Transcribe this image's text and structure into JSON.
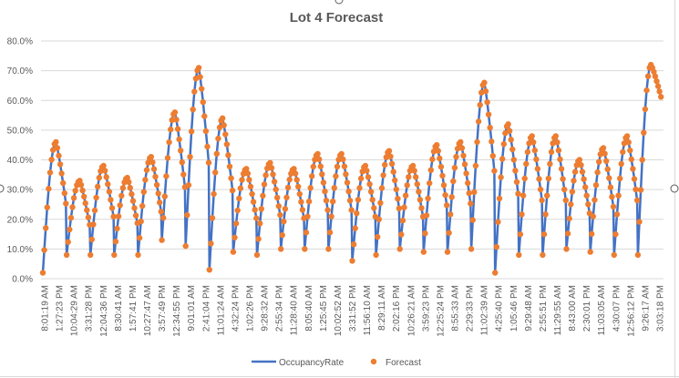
{
  "chart_data": {
    "type": "line",
    "title": "Lot 4 Forecast",
    "xlabel": "",
    "ylabel": "",
    "ylim": [
      0,
      0.8
    ],
    "y_ticks": [
      "0.0%",
      "10.0%",
      "20.0%",
      "30.0%",
      "40.0%",
      "50.0%",
      "60.0%",
      "70.0%",
      "80.0%"
    ],
    "grid": true,
    "legend_position": "bottom",
    "x_tick_labels": [
      "8:01:19 AM",
      "1:27:23 PM",
      "10:04:29 AM",
      "3:31:28 PM",
      "12:04:36 PM",
      "8:30:41 AM",
      "1:57:41 PM",
      "10:27:47 AM",
      "3:57:49 PM",
      "12:34:55 PM",
      "9:01:01 AM",
      "2:41:04 PM",
      "11:01:24 AM",
      "4:32:24 PM",
      "1:02:26 PM",
      "9:28:32 AM",
      "2:55:34 PM",
      "11:28:40 AM",
      "8:05:40 AM",
      "1:25:45 PM",
      "10:02:52 AM",
      "3:31:52 PM",
      "11:56:10 AM",
      "8:29:11 AM",
      "2:02:16 PM",
      "10:26:21 AM",
      "3:59:23 PM",
      "12:25:24 PM",
      "8:55:33 AM",
      "2:29:33 PM",
      "11:02:39 AM",
      "4:25:40 PM",
      "1:05:46 PM",
      "9:29:48 AM",
      "2:55:51 PM",
      "11:29:55 AM",
      "8:43:00 AM",
      "2:30:01 PM",
      "11:03:05 AM",
      "4:30:07 PM",
      "12:56:12 PM",
      "9:26:17 AM",
      "3:03:18 PM"
    ],
    "cycle_peaks": [
      0.46,
      0.33,
      0.38,
      0.34,
      0.41,
      0.56,
      0.71,
      0.54,
      0.37,
      0.39,
      0.37,
      0.42,
      0.42,
      0.38,
      0.43,
      0.38,
      0.45,
      0.46,
      0.66,
      0.52,
      0.48,
      0.48,
      0.4,
      0.44,
      0.48,
      0.72
    ],
    "cycle_troughs": [
      0.02,
      0.08,
      0.08,
      0.08,
      0.08,
      0.13,
      0.11,
      0.03,
      0.09,
      0.08,
      0.1,
      0.1,
      0.1,
      0.06,
      0.08,
      0.1,
      0.09,
      0.09,
      0.1,
      0.02,
      0.08,
      0.08,
      0.1,
      0.09,
      0.08,
      0.08
    ],
    "series": [
      {
        "name": "OccupancyRate",
        "style": "line",
        "color": "#4472c4"
      },
      {
        "name": "Forecast",
        "style": "markers",
        "color": "#ed7d31"
      }
    ]
  }
}
